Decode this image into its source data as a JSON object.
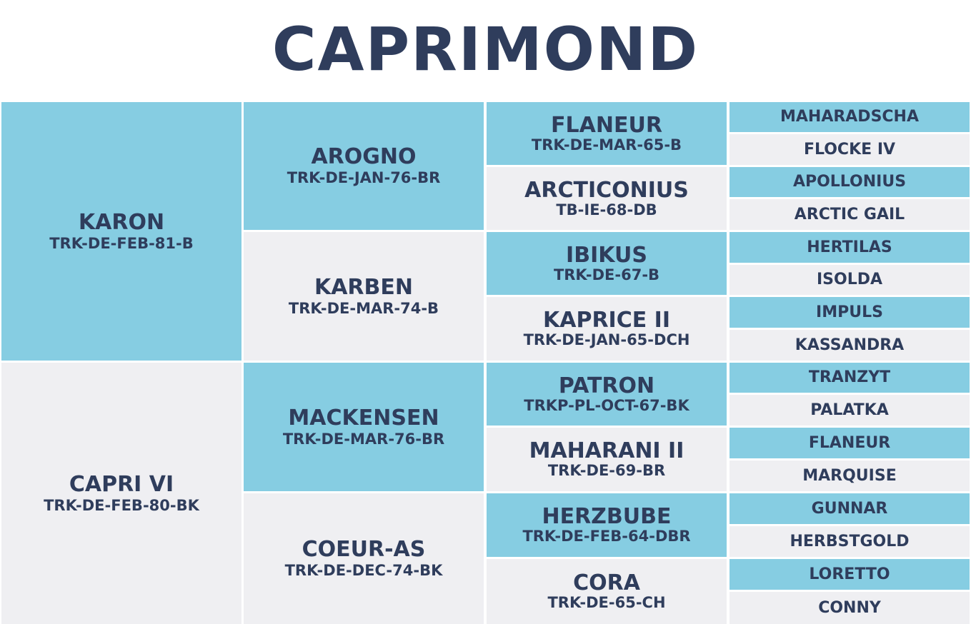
{
  "title": "CAPRIMOND",
  "colors": {
    "accent": "#86cde2",
    "neutral": "#efeff2",
    "text": "#2f3d5c"
  },
  "pedigree": {
    "sire": {
      "name": "KARON",
      "reg": "TRK-DE-FEB-81-B"
    },
    "dam": {
      "name": "CAPRI VI",
      "reg": "TRK-DE-FEB-80-BK"
    },
    "gen2": [
      {
        "name": "AROGNO",
        "reg": "TRK-DE-JAN-76-BR"
      },
      {
        "name": "KARBEN",
        "reg": "TRK-DE-MAR-74-B"
      },
      {
        "name": "MACKENSEN",
        "reg": "TRK-DE-MAR-76-BR"
      },
      {
        "name": "COEUR-AS",
        "reg": "TRK-DE-DEC-74-BK"
      }
    ],
    "gen3": [
      {
        "name": "FLANEUR",
        "reg": "TRK-DE-MAR-65-B"
      },
      {
        "name": "ARCTICONIUS",
        "reg": "TB-IE-68-DB"
      },
      {
        "name": "IBIKUS",
        "reg": "TRK-DE-67-B"
      },
      {
        "name": "KAPRICE II",
        "reg": "TRK-DE-JAN-65-DCH"
      },
      {
        "name": "PATRON",
        "reg": "TRKP-PL-OCT-67-BK"
      },
      {
        "name": "MAHARANI II",
        "reg": "TRK-DE-69-BR"
      },
      {
        "name": "HERZBUBE",
        "reg": "TRK-DE-FEB-64-DBR"
      },
      {
        "name": "CORA",
        "reg": "TRK-DE-65-CH"
      }
    ],
    "gen4": [
      "MAHARADSCHA",
      "FLOCKE IV",
      "APOLLONIUS",
      "ARCTIC GAIL",
      "HERTILAS",
      "ISOLDA",
      "IMPULS",
      "KASSANDRA",
      "TRANZYT",
      "PALATKA",
      "FLANEUR",
      "MARQUISE",
      "GUNNAR",
      "HERBSTGOLD",
      "LORETTO",
      "CONNY"
    ]
  }
}
